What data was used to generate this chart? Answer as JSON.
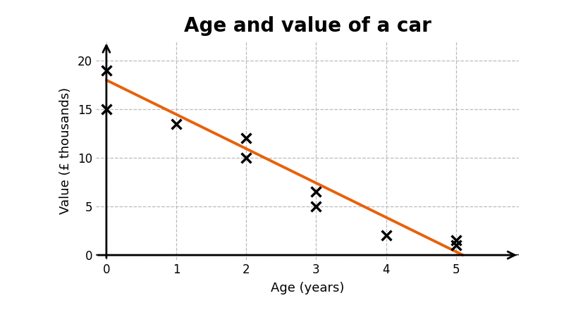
{
  "title": "Age and value of a car",
  "xlabel": "Age (years)",
  "ylabel": "Value (£ thousands)",
  "scatter_x": [
    0,
    0,
    1,
    2,
    2,
    3,
    3,
    4,
    5,
    5
  ],
  "scatter_y": [
    19,
    15,
    13.5,
    12,
    10,
    6.5,
    5,
    2,
    1.5,
    1
  ],
  "trendline_x": [
    0,
    5.1
  ],
  "trendline_y": [
    18,
    0
  ],
  "trendline_color": "#E8610A",
  "scatter_color": "#000000",
  "background_color": "#ffffff",
  "grid_color": "#bbbbbb",
  "xlim": [
    -0.15,
    5.9
  ],
  "ylim": [
    -0.5,
    22
  ],
  "xticks": [
    0,
    1,
    2,
    3,
    4,
    5
  ],
  "yticks": [
    0,
    5,
    10,
    15,
    20
  ],
  "title_fontsize": 20,
  "label_fontsize": 13,
  "tick_fontsize": 12
}
